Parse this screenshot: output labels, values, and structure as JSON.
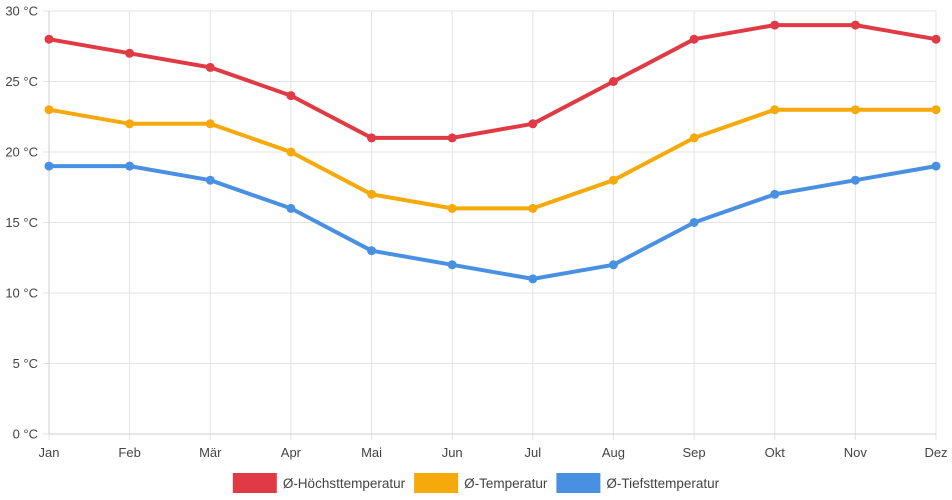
{
  "chart_data": {
    "type": "line",
    "title": "",
    "xlabel": "",
    "ylabel": "",
    "y_unit": "°C",
    "ylim": [
      0,
      30
    ],
    "y_ticks": [
      0,
      5,
      10,
      15,
      20,
      25,
      30
    ],
    "y_tick_labels": [
      "0 °C",
      "5 °C",
      "10 °C",
      "15 °C",
      "20 °C",
      "25 °C",
      "30 °C"
    ],
    "grid": true,
    "legend_position": "bottom-center",
    "categories": [
      "Jan",
      "Feb",
      "Mär",
      "Apr",
      "Mai",
      "Jun",
      "Jul",
      "Aug",
      "Sep",
      "Okt",
      "Nov",
      "Dez"
    ],
    "series": [
      {
        "name": "Ø-Höchsttemperatur",
        "color": "#e03a45",
        "values": [
          28,
          27,
          26,
          24,
          21,
          21,
          22,
          25,
          28,
          29,
          29,
          28
        ]
      },
      {
        "name": "Ø-Temperatur",
        "color": "#f5a90a",
        "values": [
          23,
          22,
          22,
          20,
          17,
          16,
          16,
          18,
          21,
          23,
          23,
          23
        ]
      },
      {
        "name": "Ø-Tiefsttemperatur",
        "color": "#4a90e2",
        "values": [
          19,
          19,
          18,
          16,
          13,
          12,
          11,
          12,
          15,
          17,
          18,
          19
        ]
      }
    ]
  }
}
